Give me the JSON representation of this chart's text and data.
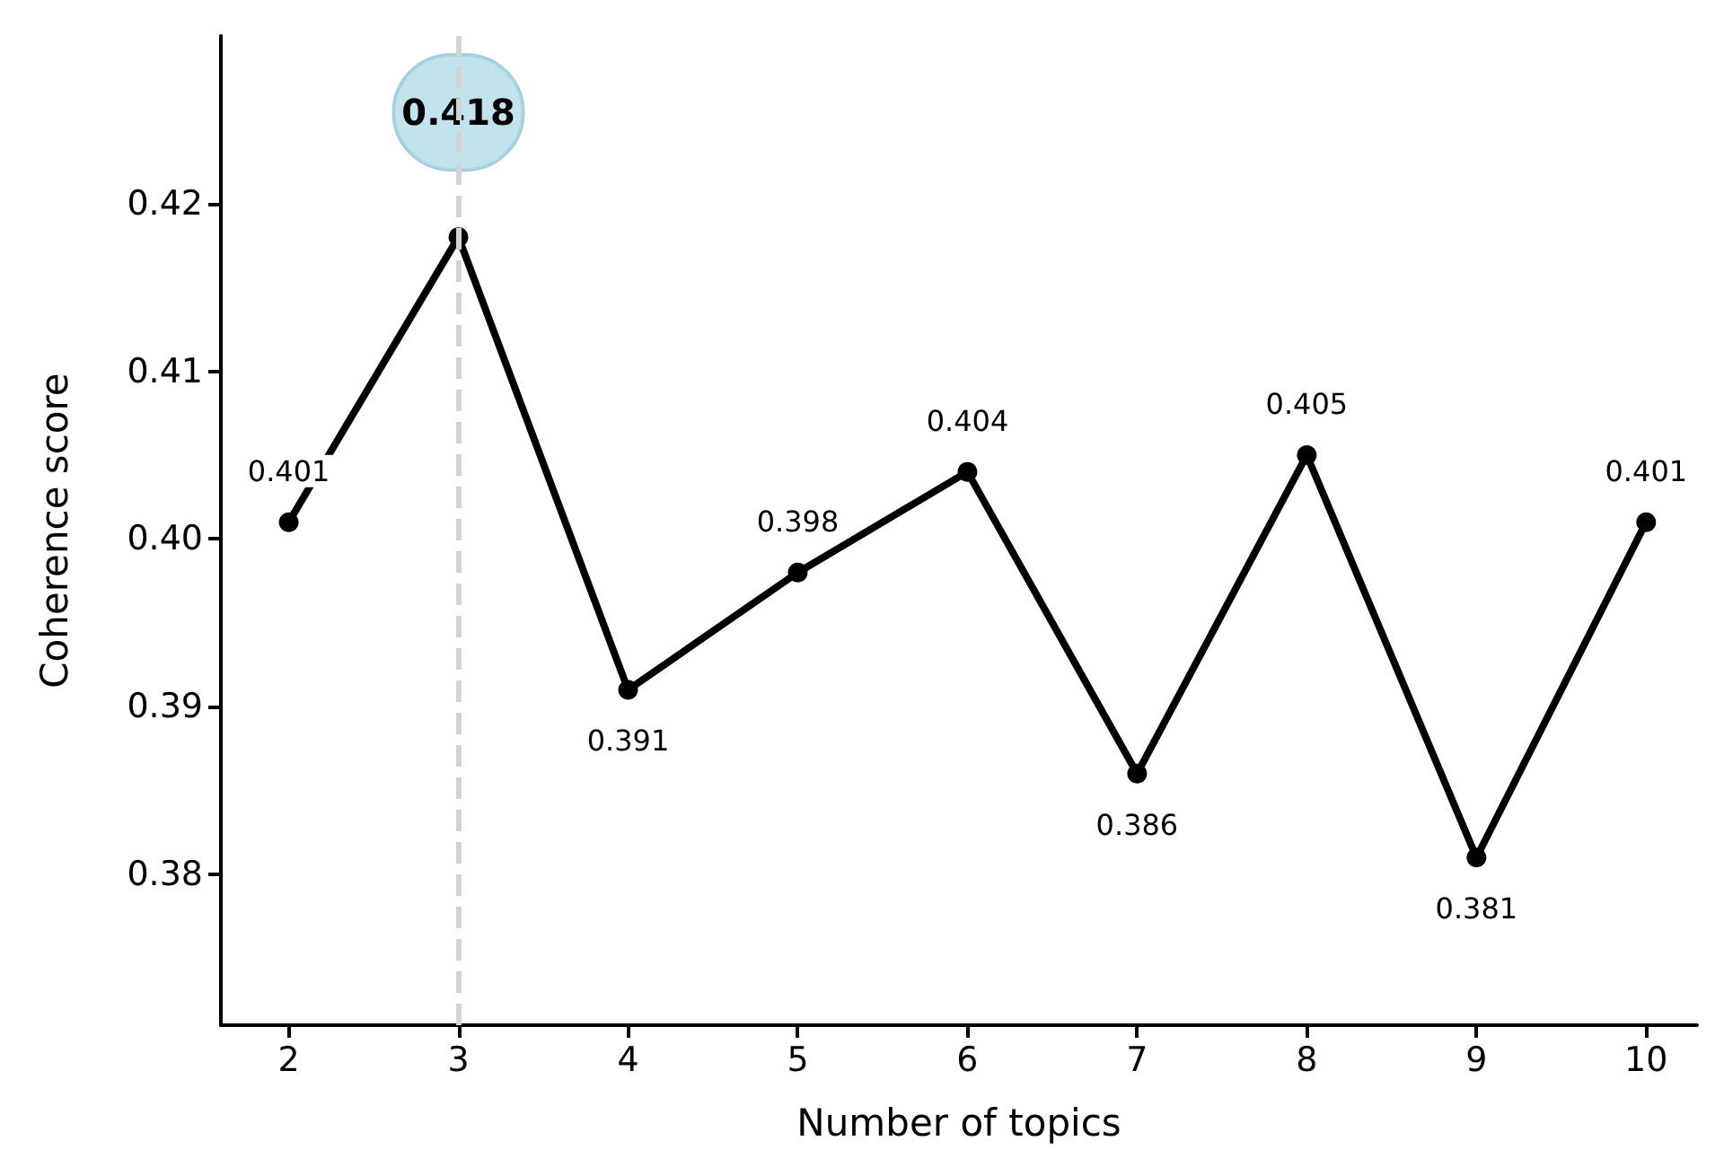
{
  "chart_data": {
    "type": "line",
    "xlabel": "Number of topics",
    "ylabel": "Coherence score",
    "x": [
      2,
      3,
      4,
      5,
      6,
      7,
      8,
      9,
      10
    ],
    "series": [
      {
        "color": "#000000",
        "values": [
          0.401,
          0.418,
          0.391,
          0.398,
          0.404,
          0.386,
          0.405,
          0.381,
          0.401
        ]
      }
    ],
    "xlim": [
      1.6,
      10.3
    ],
    "xticks": [
      2,
      3,
      4,
      5,
      6,
      7,
      8,
      9,
      10
    ],
    "ylim": [
      0.371,
      0.43
    ],
    "yticks": [
      0.38,
      0.39,
      {
        "value": 0.4,
        "label": "0.40"
      },
      0.41,
      0.42
    ],
    "ref_lines": [
      {
        "axis": "x",
        "value": 3,
        "color": "#d3d3d3",
        "line_style": "dashed"
      }
    ],
    "data_labels": true,
    "grid": false,
    "marker": "circle",
    "line_style": "solid"
  }
}
